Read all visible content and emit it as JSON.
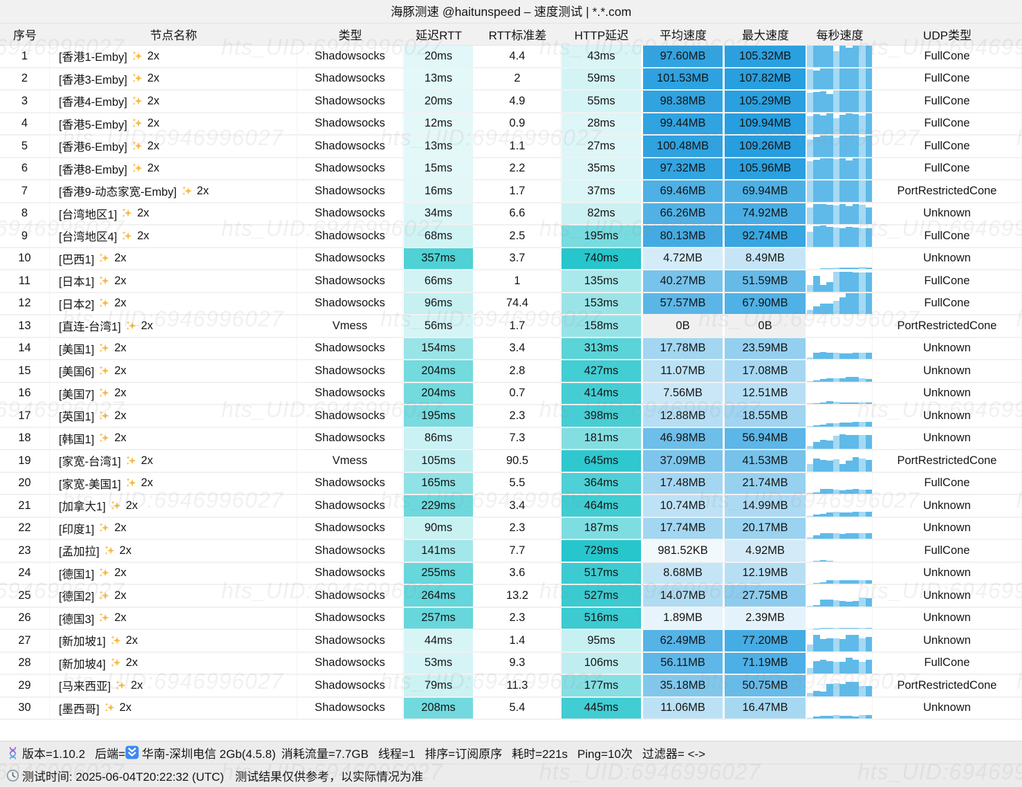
{
  "title": "海豚测速 @haitunspeed – 速度测试 | *.*.com",
  "watermark": "hts_UID:6946996027",
  "columns": [
    "序号",
    "节点名称",
    "类型",
    "延迟RTT",
    "RTT标准差",
    "HTTP延迟",
    "平均速度",
    "最大速度",
    "每秒速度",
    "UDP类型"
  ],
  "colors": {
    "teal_base": "#17C2C9",
    "blue_base": "#1F9BDE",
    "zero_bg": "#f0f0f0",
    "bar_medium": "#5FBAE9",
    "bar_light": "#A6D9F3",
    "sparkle": "#F7B93E",
    "header_bg": "#f1f1f1",
    "footer_bg": "#ececec"
  },
  "rows": [
    {
      "index": "1",
      "name": "[香港1-Emby]",
      "mult": "2x",
      "type": "Shadowsocks",
      "rtt": "20ms",
      "rtt_std": "4.4",
      "http": "43ms",
      "avg": "97.60MB",
      "max": "105.32MB",
      "udp": "FullCone",
      "bars": [
        1,
        1,
        1,
        1,
        0.73,
        1,
        0.9,
        1,
        1,
        1
      ]
    },
    {
      "index": "2",
      "name": "[香港3-Emby]",
      "mult": "2x",
      "type": "Shadowsocks",
      "rtt": "13ms",
      "rtt_std": "2",
      "http": "59ms",
      "avg": "101.53MB",
      "max": "107.82MB",
      "udp": "FullCone",
      "bars": [
        0.95,
        0.88,
        1,
        1,
        1,
        1,
        1,
        1,
        1,
        1
      ]
    },
    {
      "index": "3",
      "name": "[香港4-Emby]",
      "mult": "2x",
      "type": "Shadowsocks",
      "rtt": "20ms",
      "rtt_std": "4.9",
      "http": "55ms",
      "avg": "98.38MB",
      "max": "105.29MB",
      "udp": "FullCone",
      "bars": [
        0.9,
        0.92,
        0.96,
        0.85,
        1,
        1,
        1,
        1,
        1,
        1
      ]
    },
    {
      "index": "4",
      "name": "[香港5-Emby]",
      "mult": "2x",
      "type": "Shadowsocks",
      "rtt": "12ms",
      "rtt_std": "0.9",
      "http": "28ms",
      "avg": "99.44MB",
      "max": "109.94MB",
      "udp": "FullCone",
      "bars": [
        0.85,
        0.95,
        0.9,
        1,
        0.74,
        0.92,
        1,
        0.95,
        0.88,
        0.97
      ]
    },
    {
      "index": "5",
      "name": "[香港6-Emby]",
      "mult": "2x",
      "type": "Shadowsocks",
      "rtt": "13ms",
      "rtt_std": "1.1",
      "http": "27ms",
      "avg": "100.48MB",
      "max": "109.26MB",
      "udp": "FullCone",
      "bars": [
        0.8,
        0.95,
        1,
        1,
        0.9,
        1,
        1,
        1,
        0.93,
        1
      ]
    },
    {
      "index": "6",
      "name": "[香港8-Emby]",
      "mult": "2x",
      "type": "Shadowsocks",
      "rtt": "15ms",
      "rtt_std": "2.2",
      "http": "35ms",
      "avg": "97.32MB",
      "max": "105.96MB",
      "udp": "FullCone",
      "bars": [
        0.85,
        0.92,
        1,
        1,
        0.95,
        1,
        0.9,
        1,
        1,
        1
      ]
    },
    {
      "index": "7",
      "name": "[香港9-动态家宽-Emby]",
      "mult": "2x",
      "type": "Shadowsocks",
      "rtt": "16ms",
      "rtt_std": "1.7",
      "http": "37ms",
      "avg": "69.46MB",
      "max": "69.94MB",
      "udp": "PortRestrictedCone",
      "bars": [
        1,
        1,
        1,
        1,
        1,
        1,
        1,
        1,
        1,
        1
      ]
    },
    {
      "index": "8",
      "name": "[台湾地区1]",
      "mult": "2x",
      "type": "Shadowsocks",
      "rtt": "34ms",
      "rtt_std": "6.6",
      "http": "82ms",
      "avg": "66.26MB",
      "max": "74.92MB",
      "udp": "Unknown",
      "bars": [
        0.78,
        0.95,
        0.95,
        0.93,
        0.9,
        0.95,
        0.85,
        0.95,
        0.93,
        0.8
      ]
    },
    {
      "index": "9",
      "name": "[台湾地区4]",
      "mult": "2x",
      "type": "Shadowsocks",
      "rtt": "68ms",
      "rtt_std": "2.5",
      "http": "195ms",
      "avg": "80.13MB",
      "max": "92.74MB",
      "udp": "FullCone",
      "bars": [
        0.7,
        0.97,
        1,
        0.95,
        0.9,
        0.88,
        0.93,
        0.9,
        0.88,
        0.88
      ]
    },
    {
      "index": "10",
      "name": "[巴西1]",
      "mult": "2x",
      "type": "Shadowsocks",
      "rtt": "357ms",
      "rtt_std": "3.7",
      "http": "740ms",
      "avg": "4.72MB",
      "max": "8.49MB",
      "udp": "Unknown",
      "bars": [
        0,
        0,
        0.02,
        0.03,
        0.05,
        0.06,
        0.05,
        0.08,
        0.1,
        0.08
      ]
    },
    {
      "index": "11",
      "name": "[日本1]",
      "mult": "2x",
      "type": "Shadowsocks",
      "rtt": "66ms",
      "rtt_std": "1",
      "http": "135ms",
      "avg": "40.27MB",
      "max": "51.59MB",
      "udp": "FullCone",
      "bars": [
        0.3,
        0.75,
        0.3,
        0.45,
        0.95,
        0.95,
        0.92,
        0.9,
        0.9,
        0.9
      ]
    },
    {
      "index": "12",
      "name": "[日本2]",
      "mult": "2x",
      "type": "Shadowsocks",
      "rtt": "96ms",
      "rtt_std": "74.4",
      "http": "153ms",
      "avg": "57.57MB",
      "max": "67.90MB",
      "udp": "FullCone",
      "bars": [
        0.2,
        0.35,
        0.5,
        0.5,
        0.62,
        0.8,
        1,
        1,
        1,
        1
      ]
    },
    {
      "index": "13",
      "name": "[直连-台湾1]",
      "mult": "2x",
      "type": "Vmess",
      "rtt": "56ms",
      "rtt_std": "1.7",
      "http": "158ms",
      "avg": "0B",
      "max": "0B",
      "udp": "PortRestrictedCone",
      "bars": [
        0,
        0,
        0,
        0,
        0,
        0,
        0,
        0,
        0,
        0
      ]
    },
    {
      "index": "14",
      "name": "[美国1]",
      "mult": "2x",
      "type": "Shadowsocks",
      "rtt": "154ms",
      "rtt_std": "3.4",
      "http": "313ms",
      "avg": "17.78MB",
      "max": "23.59MB",
      "udp": "Unknown",
      "bars": [
        0.05,
        0.3,
        0.32,
        0.3,
        0.3,
        0.26,
        0.26,
        0.28,
        0.28,
        0.3
      ]
    },
    {
      "index": "15",
      "name": "[美国6]",
      "mult": "2x",
      "type": "Shadowsocks",
      "rtt": "204ms",
      "rtt_std": "2.8",
      "http": "427ms",
      "avg": "11.07MB",
      "max": "17.08MB",
      "udp": "Unknown",
      "bars": [
        0.02,
        0.06,
        0.1,
        0.15,
        0.15,
        0.16,
        0.2,
        0.2,
        0.16,
        0.13
      ]
    },
    {
      "index": "16",
      "name": "[美国7]",
      "mult": "2x",
      "type": "Shadowsocks",
      "rtt": "204ms",
      "rtt_std": "0.7",
      "http": "414ms",
      "avg": "7.56MB",
      "max": "12.51MB",
      "udp": "Unknown",
      "bars": [
        0.02,
        0.04,
        0.07,
        0.13,
        0.09,
        0.07,
        0.06,
        0.05,
        0.06,
        0.06
      ]
    },
    {
      "index": "17",
      "name": "[英国1]",
      "mult": "2x",
      "type": "Shadowsocks",
      "rtt": "195ms",
      "rtt_std": "2.3",
      "http": "398ms",
      "avg": "12.88MB",
      "max": "18.55MB",
      "udp": "Unknown",
      "bars": [
        0.03,
        0.06,
        0.09,
        0.15,
        0.16,
        0.18,
        0.18,
        0.22,
        0.22,
        0.22
      ]
    },
    {
      "index": "18",
      "name": "[韩国1]",
      "mult": "2x",
      "type": "Shadowsocks",
      "rtt": "86ms",
      "rtt_std": "7.3",
      "http": "181ms",
      "avg": "46.98MB",
      "max": "56.94MB",
      "udp": "Unknown",
      "bars": [
        0.12,
        0.32,
        0.42,
        0.38,
        0.62,
        0.68,
        0.65,
        0.66,
        0.65,
        0.65
      ]
    },
    {
      "index": "19",
      "name": "[家宽-台湾1]",
      "mult": "2x",
      "type": "Vmess",
      "rtt": "105ms",
      "rtt_std": "90.5",
      "http": "645ms",
      "avg": "37.09MB",
      "max": "41.53MB",
      "udp": "PortRestrictedCone",
      "bars": [
        0.35,
        0.62,
        0.55,
        0.5,
        0.56,
        0.36,
        0.5,
        0.66,
        0.6,
        0.55
      ]
    },
    {
      "index": "20",
      "name": "[家宽-美国1]",
      "mult": "2x",
      "type": "Shadowsocks",
      "rtt": "165ms",
      "rtt_std": "5.5",
      "http": "364ms",
      "avg": "17.48MB",
      "max": "21.74MB",
      "udp": "FullCone",
      "bars": [
        0.04,
        0.06,
        0.22,
        0.24,
        0.2,
        0.18,
        0.2,
        0.23,
        0.2,
        0.2
      ]
    },
    {
      "index": "21",
      "name": "[加拿大1]",
      "mult": "2x",
      "type": "Shadowsocks",
      "rtt": "229ms",
      "rtt_std": "3.4",
      "http": "464ms",
      "avg": "10.74MB",
      "max": "14.99MB",
      "udp": "Unknown",
      "bars": [
        0.03,
        0.08,
        0.13,
        0.18,
        0.2,
        0.18,
        0.18,
        0.22,
        0.2,
        0.2
      ]
    },
    {
      "index": "22",
      "name": "[印度1]",
      "mult": "2x",
      "type": "Shadowsocks",
      "rtt": "90ms",
      "rtt_std": "2.3",
      "http": "187ms",
      "avg": "17.74MB",
      "max": "20.17MB",
      "udp": "Unknown",
      "bars": [
        0.08,
        0.16,
        0.25,
        0.25,
        0.25,
        0.24,
        0.25,
        0.26,
        0.25,
        0.25
      ]
    },
    {
      "index": "23",
      "name": "[孟加拉]",
      "mult": "2x",
      "type": "Shadowsocks",
      "rtt": "141ms",
      "rtt_std": "7.7",
      "http": "729ms",
      "avg": "981.52KB",
      "max": "4.92MB",
      "udp": "FullCone",
      "bars": [
        0,
        0.02,
        0.05,
        0.01,
        0,
        0,
        0,
        0,
        0,
        0
      ]
    },
    {
      "index": "24",
      "name": "[德国1]",
      "mult": "2x",
      "type": "Shadowsocks",
      "rtt": "255ms",
      "rtt_std": "3.6",
      "http": "517ms",
      "avg": "8.68MB",
      "max": "12.19MB",
      "udp": "Unknown",
      "bars": [
        0,
        0.02,
        0.05,
        0.18,
        0.18,
        0.18,
        0.18,
        0.18,
        0.18,
        0.18
      ]
    },
    {
      "index": "25",
      "name": "[德国2]",
      "mult": "2x",
      "type": "Shadowsocks",
      "rtt": "264ms",
      "rtt_std": "13.2",
      "http": "527ms",
      "avg": "14.07MB",
      "max": "27.75MB",
      "udp": "Unknown",
      "bars": [
        0.02,
        0.06,
        0.3,
        0.32,
        0.28,
        0.25,
        0.22,
        0.26,
        0.4,
        0.38
      ]
    },
    {
      "index": "26",
      "name": "[德国3]",
      "mult": "2x",
      "type": "Shadowsocks",
      "rtt": "257ms",
      "rtt_std": "2.3",
      "http": "516ms",
      "avg": "1.89MB",
      "max": "2.39MB",
      "udp": "Unknown",
      "bars": [
        0,
        0.01,
        0.02,
        0.02,
        0.02,
        0.02,
        0.02,
        0.02,
        0.03,
        0.02
      ]
    },
    {
      "index": "27",
      "name": "[新加坡1]",
      "mult": "2x",
      "type": "Shadowsocks",
      "rtt": "44ms",
      "rtt_std": "1.4",
      "http": "95ms",
      "avg": "62.49MB",
      "max": "77.20MB",
      "udp": "Unknown",
      "bars": [
        0.3,
        0.78,
        0.58,
        0.62,
        0.6,
        0.56,
        0.78,
        0.76,
        0.6,
        0.66
      ]
    },
    {
      "index": "28",
      "name": "[新加坡4]",
      "mult": "2x",
      "type": "Shadowsocks",
      "rtt": "53ms",
      "rtt_std": "9.3",
      "http": "106ms",
      "avg": "56.11MB",
      "max": "71.19MB",
      "udp": "FullCone",
      "bars": [
        0.26,
        0.6,
        0.66,
        0.6,
        0.56,
        0.56,
        0.76,
        0.66,
        0.56,
        0.66
      ]
    },
    {
      "index": "29",
      "name": "[马来西亚]",
      "mult": "2x",
      "type": "Shadowsocks",
      "rtt": "79ms",
      "rtt_std": "11.3",
      "http": "177ms",
      "avg": "35.18MB",
      "max": "50.75MB",
      "udp": "PortRestrictedCone",
      "bars": [
        0.16,
        0.26,
        0.2,
        0.56,
        0.62,
        0.56,
        0.66,
        0.66,
        0.46,
        0.46
      ]
    },
    {
      "index": "30",
      "name": "[墨西哥]",
      "mult": "2x",
      "type": "Shadowsocks",
      "rtt": "208ms",
      "rtt_std": "5.4",
      "http": "445ms",
      "avg": "11.06MB",
      "max": "16.47MB",
      "udp": "Unknown",
      "bars": [
        0.03,
        0.09,
        0.13,
        0.12,
        0.15,
        0.12,
        0.12,
        0.1,
        0.18,
        0.18
      ]
    }
  ],
  "footer": {
    "line1": {
      "version": "版本=1.10.2",
      "backend_label": "后端=",
      "backend_value": "华南-深圳电信 2Gb(4.5.8)",
      "traffic": "消耗流量=7.7GB",
      "threads": "线程=1",
      "sort": "排序=订阅原序",
      "elapsed": "耗时=221s",
      "ping": "Ping=10次",
      "filter": "过滤器= <->"
    },
    "line2": {
      "time": "测试时间: 2025-06-04T20:22:32 (UTC)",
      "disclaimer": "测试结果仅供参考，以实际情况为准"
    }
  }
}
